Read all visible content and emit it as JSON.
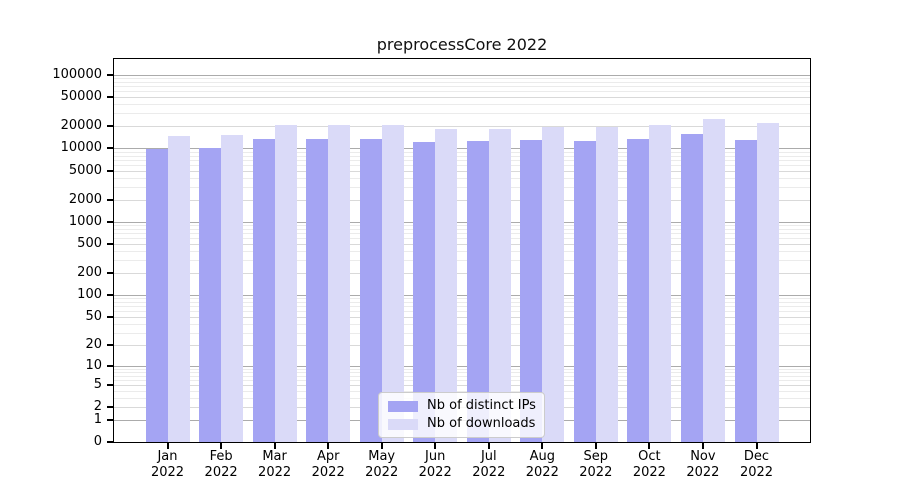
{
  "title": "preprocessCore 2022",
  "chart_data": {
    "type": "bar",
    "title": "preprocessCore 2022",
    "categories": [
      "Jan 2022",
      "Feb 2022",
      "Mar 2022",
      "Apr 2022",
      "May 2022",
      "Jun 2022",
      "Jul 2022",
      "Aug 2022",
      "Sep 2022",
      "Oct 2022",
      "Nov 2022",
      "Dec 2022"
    ],
    "x_tick_months": [
      "Jan",
      "Feb",
      "Mar",
      "Apr",
      "May",
      "Jun",
      "Jul",
      "Aug",
      "Sep",
      "Oct",
      "Nov",
      "Dec"
    ],
    "x_tick_year": "2022",
    "series": [
      {
        "name": "Nb of distinct IPs",
        "color": "#a4a4f3",
        "values": [
          9700,
          10000,
          13300,
          13600,
          13300,
          12300,
          12700,
          13100,
          12500,
          13600,
          15700,
          12900
        ]
      },
      {
        "name": "Nb of downloads",
        "color": "#dadaf8",
        "values": [
          14900,
          15200,
          20800,
          20800,
          20700,
          18400,
          18200,
          19700,
          19500,
          21000,
          25400,
          22200
        ]
      }
    ],
    "y_axis": {
      "scale": "log10(value+1)",
      "tick_labels": [
        "100000",
        "50000",
        "20000",
        "10000",
        "5000",
        "2000",
        "1000",
        "500",
        "200",
        "100",
        "50",
        "20",
        "10",
        "5",
        "2",
        "1",
        "0"
      ],
      "tick_values": [
        100000,
        50000,
        20000,
        10000,
        5000,
        2000,
        1000,
        500,
        200,
        100,
        50,
        20,
        10,
        5,
        2,
        1,
        0
      ],
      "max_value": 165000,
      "grid": true
    },
    "legend": {
      "position": "lower-center-inside",
      "items": [
        "Nb of distinct IPs",
        "Nb of downloads"
      ]
    },
    "colors": {
      "grid_major": "#ababab",
      "grid_mid": "#d9d9d9",
      "grid_minor": "#ebebeb",
      "spine": "#000000",
      "background": "#ffffff"
    }
  }
}
